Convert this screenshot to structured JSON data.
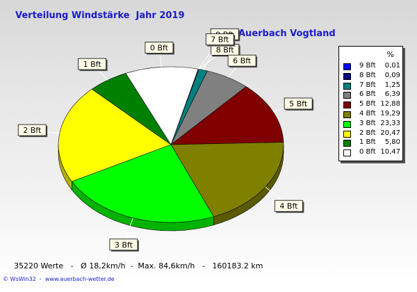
{
  "header": {
    "title": "Verteilung Windstärke  Jahr 2019",
    "location": "Auerbach Vogtland"
  },
  "legend": {
    "unit_label": "%"
  },
  "footer": {
    "stats": "35220 Werte   -   Ø 18,2km/h  -  Max. 84,6km/h   -   160183.2 km",
    "credit": "© WsWin32  -  www.auerbach-wetter.de"
  },
  "chart_data": {
    "type": "pie",
    "title": "Verteilung Windstärke  Jahr 2019",
    "subtitle": "Auerbach Vogtland",
    "unit": "%",
    "legend_position": "right",
    "slices": [
      {
        "label": "9 Bft",
        "value": 0.01,
        "color": "#0000ff"
      },
      {
        "label": "8 Bft",
        "value": 0.09,
        "color": "#000080"
      },
      {
        "label": "7 Bft",
        "value": 1.25,
        "color": "#008080"
      },
      {
        "label": "6 Bft",
        "value": 6.39,
        "color": "#808080"
      },
      {
        "label": "5 Bft",
        "value": 12.88,
        "color": "#800000"
      },
      {
        "label": "4 Bft",
        "value": 19.29,
        "color": "#808000"
      },
      {
        "label": "3 Bft",
        "value": 23.33,
        "color": "#00ff00"
      },
      {
        "label": "2 Bft",
        "value": 20.47,
        "color": "#ffff00"
      },
      {
        "label": "1 Bft",
        "value": 5.8,
        "color": "#008000"
      },
      {
        "label": "0 Bft",
        "value": 10.47,
        "color": "#ffffff"
      }
    ],
    "legend_values": [
      "0,01",
      "0,09",
      "1,25",
      "6,39",
      "12,88",
      "19,29",
      "23,33",
      "20,47",
      "5,80",
      "10,47"
    ]
  }
}
